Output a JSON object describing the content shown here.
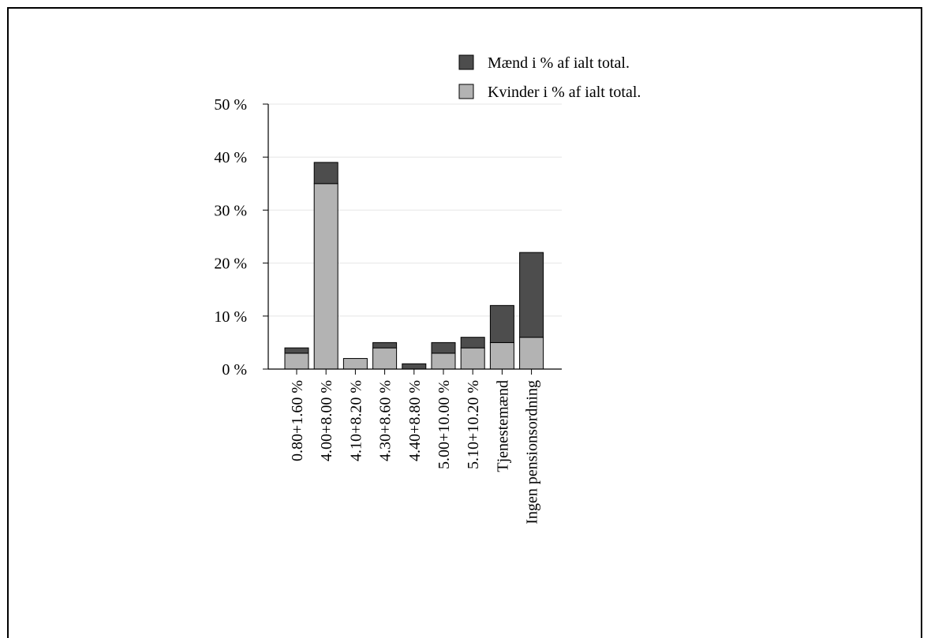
{
  "chart_data": {
    "type": "bar",
    "stacked": true,
    "categories": [
      "0.80+1.60 %",
      "4.00+8.00 %",
      "4.10+8.20 %",
      "4.30+8.60 %",
      "4.40+8.80 %",
      "5.00+10.00 %",
      "5.10+10.20 %",
      "Tjenestemænd",
      "Ingen pensionsordning"
    ],
    "series": [
      {
        "name": "Kvinder i % af ialt total.",
        "color": "#b3b3b3",
        "values": [
          3,
          35,
          2,
          4,
          0,
          3,
          4,
          5,
          6
        ]
      },
      {
        "name": "Mænd i % af ialt total.",
        "color": "#4d4d4d",
        "values": [
          1,
          4,
          0,
          1,
          1,
          2,
          2,
          7,
          16
        ]
      }
    ],
    "ylim": [
      0,
      50
    ],
    "yticks": [
      0,
      10,
      20,
      30,
      40,
      50
    ],
    "ytick_labels": [
      "0 %",
      "10 %",
      "20 %",
      "30 %",
      "40 %",
      "50 %"
    ],
    "grid": true,
    "legend_position": "top-right",
    "legend_order": [
      1,
      0
    ],
    "title": "",
    "xlabel": "",
    "ylabel": ""
  }
}
